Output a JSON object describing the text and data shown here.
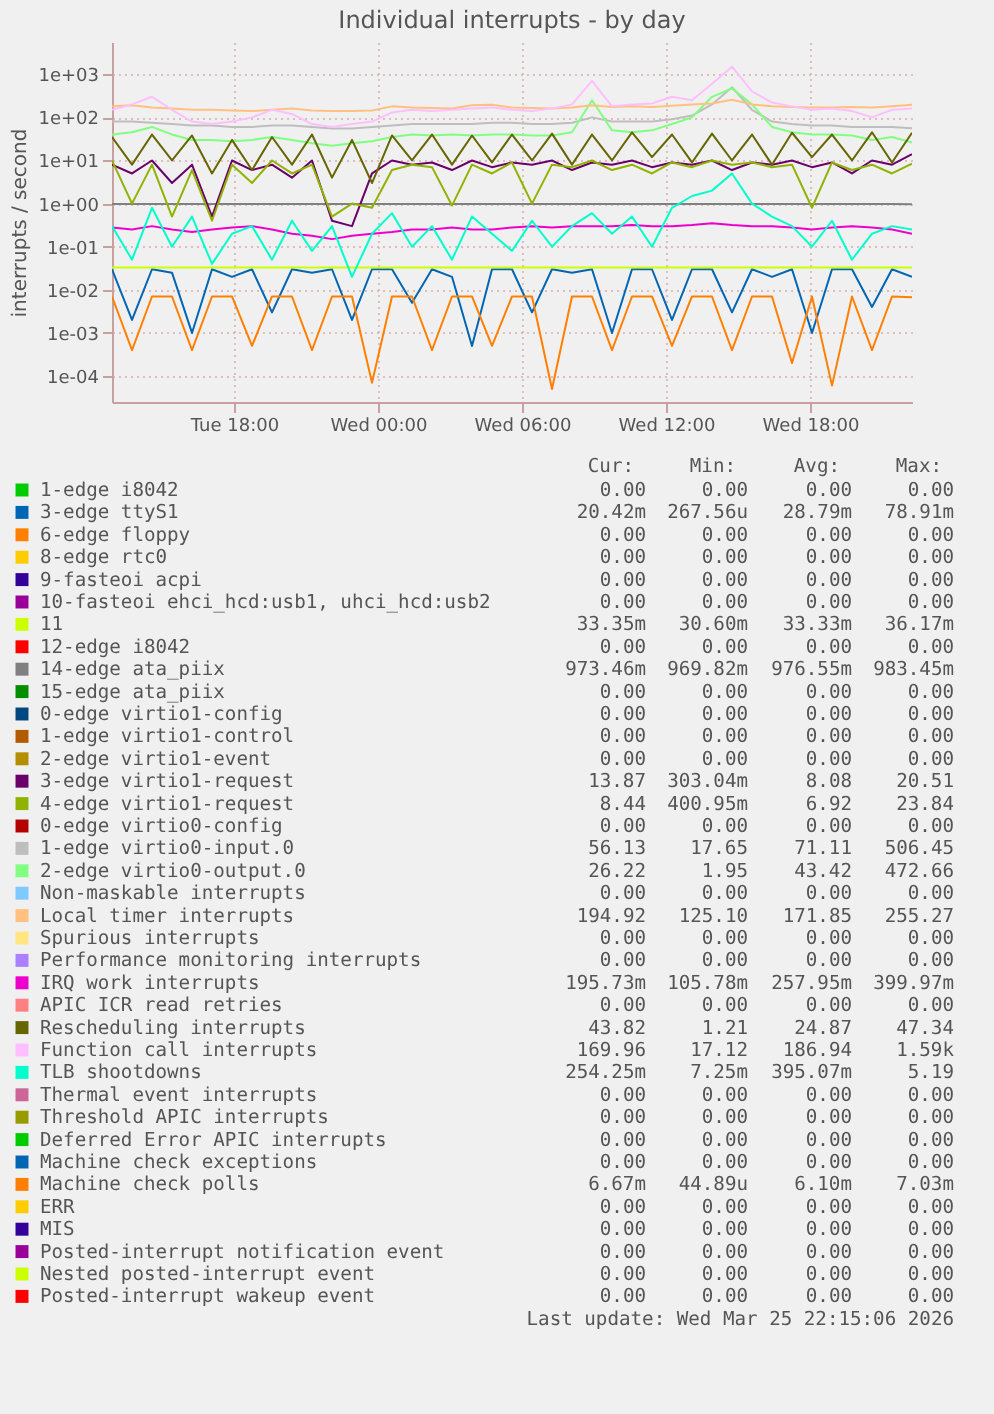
{
  "chart_data": {
    "type": "line",
    "title": "Individual interrupts - by day",
    "ylabel": "interrupts / second",
    "log": true,
    "grid": true,
    "legend": "bottom",
    "xlim": [
      "2026-03-24T12:55",
      "2026-03-25T22:15"
    ],
    "xticks": [
      {
        "value": "2026-03-24T18:00",
        "label": "Tue 18:00"
      },
      {
        "value": "2026-03-25T00:00",
        "label": "Wed 00:00"
      },
      {
        "value": "2026-03-25T06:00",
        "label": "Wed 06:00"
      },
      {
        "value": "2026-03-25T12:00",
        "label": "Wed 12:00"
      },
      {
        "value": "2026-03-25T18:00",
        "label": "Wed 18:00"
      }
    ],
    "ylim": [
      2.5e-05,
      5600
    ],
    "yticks": [
      {
        "value": 0.0001,
        "label": "1e-04"
      },
      {
        "value": 0.001,
        "label": "1e-03"
      },
      {
        "value": 0.01,
        "label": "1e-02"
      },
      {
        "value": 0.1,
        "label": "1e-01"
      },
      {
        "value": 1,
        "label": "1e+00"
      },
      {
        "value": 10,
        "label": "1e+01"
      },
      {
        "value": 100,
        "label": "1e+02"
      },
      {
        "value": 1000,
        "label": "1e+03"
      }
    ],
    "x": [
      "2026-03-24T12:55",
      "2026-03-24T13:45",
      "2026-03-24T14:35",
      "2026-03-24T15:25",
      "2026-03-24T16:15",
      "2026-03-24T17:05",
      "2026-03-24T17:55",
      "2026-03-24T18:45",
      "2026-03-24T19:35",
      "2026-03-24T20:25",
      "2026-03-24T21:15",
      "2026-03-24T22:05",
      "2026-03-24T22:55",
      "2026-03-24T23:45",
      "2026-03-25T00:35",
      "2026-03-25T01:25",
      "2026-03-25T02:15",
      "2026-03-25T03:05",
      "2026-03-25T03:55",
      "2026-03-25T04:45",
      "2026-03-25T05:35",
      "2026-03-25T06:25",
      "2026-03-25T07:15",
      "2026-03-25T08:05",
      "2026-03-25T08:55",
      "2026-03-25T09:45",
      "2026-03-25T10:35",
      "2026-03-25T11:25",
      "2026-03-25T12:15",
      "2026-03-25T13:05",
      "2026-03-25T13:55",
      "2026-03-25T14:45",
      "2026-03-25T15:35",
      "2026-03-25T16:25",
      "2026-03-25T17:15",
      "2026-03-25T18:05",
      "2026-03-25T18:55",
      "2026-03-25T19:45",
      "2026-03-25T20:35",
      "2026-03-25T21:25",
      "2026-03-25T22:15"
    ],
    "series": [
      {
        "name": "1-edge i8042",
        "color": "#00cc00",
        "values": [
          null,
          null,
          null,
          null,
          null,
          null,
          null,
          null,
          null,
          null,
          null,
          null,
          null,
          null,
          null,
          null,
          null,
          null,
          null,
          null,
          null,
          null,
          null,
          null,
          null,
          null,
          null,
          null,
          null,
          null,
          null,
          null,
          null,
          null,
          null,
          null,
          null,
          null,
          null,
          null,
          null
        ]
      },
      {
        "name": "3-edge ttyS1",
        "color": "#0066b3",
        "values": [
          0.03,
          0.002,
          0.03,
          0.025,
          0.001,
          0.03,
          0.02,
          0.03,
          0.003,
          0.03,
          0.025,
          0.03,
          0.002,
          0.03,
          0.03,
          0.005,
          0.03,
          0.02,
          0.0005,
          0.03,
          0.03,
          0.003,
          0.03,
          0.025,
          0.03,
          0.001,
          0.03,
          0.03,
          0.002,
          0.03,
          0.03,
          0.003,
          0.03,
          0.02,
          0.03,
          0.001,
          0.03,
          0.03,
          0.004,
          0.03,
          0.02
        ]
      },
      {
        "name": "6-edge floppy",
        "color": "#ff8000",
        "values": [
          null,
          null,
          null,
          null,
          null,
          null,
          null,
          null,
          null,
          null,
          null,
          null,
          null,
          null,
          null,
          null,
          null,
          null,
          null,
          null,
          null,
          null,
          null,
          null,
          null,
          null,
          null,
          null,
          null,
          null,
          null,
          null,
          null,
          null,
          null,
          null,
          null,
          null,
          null,
          null,
          null
        ]
      },
      {
        "name": "8-edge rtc0",
        "color": "#ffcc00",
        "values": [
          null,
          null,
          null,
          null,
          null,
          null,
          null,
          null,
          null,
          null,
          null,
          null,
          null,
          null,
          null,
          null,
          null,
          null,
          null,
          null,
          null,
          null,
          null,
          null,
          null,
          null,
          null,
          null,
          null,
          null,
          null,
          null,
          null,
          null,
          null,
          null,
          null,
          null,
          null,
          null,
          null
        ]
      },
      {
        "name": "9-fasteoi acpi",
        "color": "#330099",
        "values": [
          null,
          null,
          null,
          null,
          null,
          null,
          null,
          null,
          null,
          null,
          null,
          null,
          null,
          null,
          null,
          null,
          null,
          null,
          null,
          null,
          null,
          null,
          null,
          null,
          null,
          null,
          null,
          null,
          null,
          null,
          null,
          null,
          null,
          null,
          null,
          null,
          null,
          null,
          null,
          null,
          null
        ]
      },
      {
        "name": "10-fasteoi ehci_hcd:usb1, uhci_hcd:usb2",
        "color": "#990099",
        "values": [
          null,
          null,
          null,
          null,
          null,
          null,
          null,
          null,
          null,
          null,
          null,
          null,
          null,
          null,
          null,
          null,
          null,
          null,
          null,
          null,
          null,
          null,
          null,
          null,
          null,
          null,
          null,
          null,
          null,
          null,
          null,
          null,
          null,
          null,
          null,
          null,
          null,
          null,
          null,
          null,
          null
        ]
      },
      {
        "name": "11",
        "color": "#ccff00",
        "values": [
          0.033,
          0.033,
          0.033,
          0.033,
          0.033,
          0.033,
          0.033,
          0.033,
          0.033,
          0.033,
          0.033,
          0.033,
          0.033,
          0.033,
          0.033,
          0.033,
          0.033,
          0.033,
          0.033,
          0.033,
          0.033,
          0.033,
          0.033,
          0.033,
          0.033,
          0.033,
          0.033,
          0.033,
          0.033,
          0.033,
          0.033,
          0.033,
          0.033,
          0.033,
          0.033,
          0.033,
          0.033,
          0.033,
          0.033,
          0.033,
          0.033
        ]
      },
      {
        "name": "12-edge i8042",
        "color": "#ff0000",
        "values": [
          null,
          null,
          null,
          null,
          null,
          null,
          null,
          null,
          null,
          null,
          null,
          null,
          null,
          null,
          null,
          null,
          null,
          null,
          null,
          null,
          null,
          null,
          null,
          null,
          null,
          null,
          null,
          null,
          null,
          null,
          null,
          null,
          null,
          null,
          null,
          null,
          null,
          null,
          null,
          null,
          null
        ]
      },
      {
        "name": "14-edge ata_piix",
        "color": "#808080",
        "values": [
          0.98,
          0.98,
          0.98,
          0.98,
          0.98,
          0.98,
          0.98,
          0.98,
          0.98,
          0.98,
          0.98,
          0.98,
          0.98,
          0.98,
          0.98,
          0.98,
          0.98,
          0.98,
          0.98,
          0.98,
          0.98,
          0.98,
          0.98,
          0.98,
          0.98,
          0.98,
          0.98,
          0.98,
          0.98,
          0.98,
          0.98,
          0.98,
          0.98,
          0.98,
          0.98,
          0.98,
          0.98,
          0.98,
          0.98,
          0.98,
          0.97
        ]
      },
      {
        "name": "15-edge ata_piix",
        "color": "#008f00",
        "values": [
          null,
          null,
          null,
          null,
          null,
          null,
          null,
          null,
          null,
          null,
          null,
          null,
          null,
          null,
          null,
          null,
          null,
          null,
          null,
          null,
          null,
          null,
          null,
          null,
          null,
          null,
          null,
          null,
          null,
          null,
          null,
          null,
          null,
          null,
          null,
          null,
          null,
          null,
          null,
          null,
          null
        ]
      },
      {
        "name": "0-edge virtio1-config",
        "color": "#00487d",
        "values": [
          null,
          null,
          null,
          null,
          null,
          null,
          null,
          null,
          null,
          null,
          null,
          null,
          null,
          null,
          null,
          null,
          null,
          null,
          null,
          null,
          null,
          null,
          null,
          null,
          null,
          null,
          null,
          null,
          null,
          null,
          null,
          null,
          null,
          null,
          null,
          null,
          null,
          null,
          null,
          null,
          null
        ]
      },
      {
        "name": "1-edge virtio1-control",
        "color": "#b35a00",
        "values": [
          null,
          null,
          null,
          null,
          null,
          null,
          null,
          null,
          null,
          null,
          null,
          null,
          null,
          null,
          null,
          null,
          null,
          null,
          null,
          null,
          null,
          null,
          null,
          null,
          null,
          null,
          null,
          null,
          null,
          null,
          null,
          null,
          null,
          null,
          null,
          null,
          null,
          null,
          null,
          null,
          null
        ]
      },
      {
        "name": "2-edge virtio1-event",
        "color": "#b38f00",
        "values": [
          null,
          null,
          null,
          null,
          null,
          null,
          null,
          null,
          null,
          null,
          null,
          null,
          null,
          null,
          null,
          null,
          null,
          null,
          null,
          null,
          null,
          null,
          null,
          null,
          null,
          null,
          null,
          null,
          null,
          null,
          null,
          null,
          null,
          null,
          null,
          null,
          null,
          null,
          null,
          null,
          null
        ]
      },
      {
        "name": "3-edge virtio1-request",
        "color": "#6b006b",
        "values": [
          8,
          5,
          10,
          3,
          8,
          0.5,
          10,
          6,
          8,
          4,
          10,
          0.4,
          0.3,
          5,
          10,
          8,
          9,
          6,
          10,
          7,
          9,
          8,
          10,
          6,
          9,
          8,
          10,
          7,
          9,
          8,
          10,
          6,
          9,
          8,
          10,
          7,
          9,
          5,
          10,
          8,
          14
        ]
      },
      {
        "name": "4-edge virtio1-request",
        "color": "#8fb300",
        "values": [
          10,
          1,
          8,
          0.5,
          6,
          0.4,
          8,
          3,
          10,
          5,
          8,
          0.5,
          1,
          0.8,
          6,
          8,
          7,
          0.9,
          8,
          5,
          9,
          1,
          8,
          7,
          10,
          6,
          8,
          5,
          9,
          7,
          10,
          8,
          9,
          7,
          8,
          0.8,
          9,
          6,
          8,
          5,
          8.4
        ]
      },
      {
        "name": "0-edge virtio0-config",
        "color": "#b30000",
        "values": [
          null,
          null,
          null,
          null,
          null,
          null,
          null,
          null,
          null,
          null,
          null,
          null,
          null,
          null,
          null,
          null,
          null,
          null,
          null,
          null,
          null,
          null,
          null,
          null,
          null,
          null,
          null,
          null,
          null,
          null,
          null,
          null,
          null,
          null,
          null,
          null,
          null,
          null,
          null,
          null,
          null
        ]
      },
      {
        "name": "1-edge virtio0-input.0",
        "color": "#bebebe",
        "values": [
          80,
          80,
          75,
          70,
          65,
          65,
          60,
          60,
          65,
          65,
          60,
          55,
          55,
          60,
          65,
          70,
          70,
          70,
          70,
          75,
          75,
          70,
          70,
          75,
          100,
          80,
          80,
          80,
          90,
          110,
          200,
          500,
          150,
          80,
          70,
          65,
          65,
          60,
          60,
          60,
          56
        ]
      },
      {
        "name": "2-edge virtio0-output.0",
        "color": "#80ff80",
        "values": [
          40,
          45,
          60,
          40,
          30,
          30,
          28,
          30,
          35,
          30,
          25,
          22,
          25,
          28,
          35,
          40,
          38,
          40,
          38,
          40,
          40,
          38,
          38,
          45,
          250,
          50,
          45,
          50,
          70,
          100,
          300,
          470,
          200,
          60,
          45,
          40,
          40,
          38,
          30,
          35,
          26
        ]
      },
      {
        "name": "Non-maskable interrupts",
        "color": "#80c9ff",
        "values": [
          null,
          null,
          null,
          null,
          null,
          null,
          null,
          null,
          null,
          null,
          null,
          null,
          null,
          null,
          null,
          null,
          null,
          null,
          null,
          null,
          null,
          null,
          null,
          null,
          null,
          null,
          null,
          null,
          null,
          null,
          null,
          null,
          null,
          null,
          null,
          null,
          null,
          null,
          null,
          null,
          null
        ]
      },
      {
        "name": "Local timer interrupts",
        "color": "#ffc080",
        "values": [
          180,
          190,
          170,
          160,
          150,
          150,
          145,
          140,
          150,
          160,
          145,
          140,
          140,
          145,
          180,
          170,
          165,
          160,
          190,
          195,
          170,
          165,
          160,
          170,
          190,
          175,
          180,
          175,
          185,
          200,
          210,
          255,
          200,
          180,
          175,
          170,
          170,
          175,
          170,
          180,
          195
        ]
      },
      {
        "name": "Spurious interrupts",
        "color": "#ffe680",
        "values": [
          null,
          null,
          null,
          null,
          null,
          null,
          null,
          null,
          null,
          null,
          null,
          null,
          null,
          null,
          null,
          null,
          null,
          null,
          null,
          null,
          null,
          null,
          null,
          null,
          null,
          null,
          null,
          null,
          null,
          null,
          null,
          null,
          null,
          null,
          null,
          null,
          null,
          null,
          null,
          null,
          null
        ]
      },
      {
        "name": "Performance monitoring interrupts",
        "color": "#aa80ff",
        "values": [
          null,
          null,
          null,
          null,
          null,
          null,
          null,
          null,
          null,
          null,
          null,
          null,
          null,
          null,
          null,
          null,
          null,
          null,
          null,
          null,
          null,
          null,
          null,
          null,
          null,
          null,
          null,
          null,
          null,
          null,
          null,
          null,
          null,
          null,
          null,
          null,
          null,
          null,
          null,
          null,
          null
        ]
      },
      {
        "name": "IRQ work interrupts",
        "color": "#ee00cc",
        "values": [
          0.28,
          0.25,
          0.3,
          0.25,
          0.22,
          0.25,
          0.28,
          0.3,
          0.25,
          0.2,
          0.18,
          0.15,
          0.18,
          0.2,
          0.22,
          0.25,
          0.25,
          0.28,
          0.25,
          0.25,
          0.28,
          0.3,
          0.28,
          0.3,
          0.3,
          0.3,
          0.32,
          0.3,
          0.3,
          0.32,
          0.35,
          0.32,
          0.3,
          0.3,
          0.28,
          0.25,
          0.28,
          0.3,
          0.28,
          0.25,
          0.2
        ]
      },
      {
        "name": "APIC ICR read retries",
        "color": "#ff8080",
        "values": [
          null,
          null,
          null,
          null,
          null,
          null,
          null,
          null,
          null,
          null,
          null,
          null,
          null,
          null,
          null,
          null,
          null,
          null,
          null,
          null,
          null,
          null,
          null,
          null,
          null,
          null,
          null,
          null,
          null,
          null,
          null,
          null,
          null,
          null,
          null,
          null,
          null,
          null,
          null,
          null,
          null
        ]
      },
      {
        "name": "Rescheduling interrupts",
        "color": "#666600",
        "values": [
          35,
          8,
          40,
          10,
          38,
          5,
          30,
          6,
          35,
          8,
          40,
          4,
          30,
          3,
          38,
          10,
          40,
          8,
          38,
          9,
          40,
          10,
          42,
          8,
          40,
          10,
          45,
          12,
          40,
          9,
          42,
          10,
          40,
          8,
          44,
          12,
          40,
          10,
          45,
          9,
          44
        ]
      },
      {
        "name": "Function call interrupts",
        "color": "#ffbfff",
        "values": [
          150,
          200,
          300,
          150,
          80,
          70,
          80,
          100,
          150,
          120,
          70,
          60,
          70,
          80,
          130,
          150,
          140,
          150,
          160,
          170,
          150,
          140,
          160,
          200,
          700,
          180,
          200,
          210,
          300,
          250,
          600,
          1500,
          400,
          220,
          180,
          150,
          160,
          140,
          100,
          150,
          160
        ]
      },
      {
        "name": "TLB shootdowns",
        "color": "#00ffcc",
        "values": [
          0.3,
          0.05,
          0.8,
          0.1,
          0.5,
          0.04,
          0.2,
          0.3,
          0.05,
          0.4,
          0.08,
          0.3,
          0.02,
          0.2,
          0.6,
          0.1,
          0.3,
          0.05,
          0.5,
          0.2,
          0.08,
          0.4,
          0.1,
          0.3,
          0.6,
          0.2,
          0.5,
          0.1,
          0.8,
          1.5,
          2,
          5,
          1,
          0.5,
          0.3,
          0.1,
          0.4,
          0.05,
          0.2,
          0.3,
          0.25
        ]
      },
      {
        "name": "Thermal event interrupts",
        "color": "#cc6699",
        "values": [
          null,
          null,
          null,
          null,
          null,
          null,
          null,
          null,
          null,
          null,
          null,
          null,
          null,
          null,
          null,
          null,
          null,
          null,
          null,
          null,
          null,
          null,
          null,
          null,
          null,
          null,
          null,
          null,
          null,
          null,
          null,
          null,
          null,
          null,
          null,
          null,
          null,
          null,
          null,
          null,
          null
        ]
      },
      {
        "name": "Threshold APIC interrupts",
        "color": "#999900",
        "values": [
          null,
          null,
          null,
          null,
          null,
          null,
          null,
          null,
          null,
          null,
          null,
          null,
          null,
          null,
          null,
          null,
          null,
          null,
          null,
          null,
          null,
          null,
          null,
          null,
          null,
          null,
          null,
          null,
          null,
          null,
          null,
          null,
          null,
          null,
          null,
          null,
          null,
          null,
          null,
          null,
          null
        ]
      },
      {
        "name": "Deferred Error APIC interrupts",
        "color": "#00cc00",
        "values": [
          null,
          null,
          null,
          null,
          null,
          null,
          null,
          null,
          null,
          null,
          null,
          null,
          null,
          null,
          null,
          null,
          null,
          null,
          null,
          null,
          null,
          null,
          null,
          null,
          null,
          null,
          null,
          null,
          null,
          null,
          null,
          null,
          null,
          null,
          null,
          null,
          null,
          null,
          null,
          null,
          null
        ]
      },
      {
        "name": "Machine check exceptions",
        "color": "#0066b3",
        "values": [
          null,
          null,
          null,
          null,
          null,
          null,
          null,
          null,
          null,
          null,
          null,
          null,
          null,
          null,
          null,
          null,
          null,
          null,
          null,
          null,
          null,
          null,
          null,
          null,
          null,
          null,
          null,
          null,
          null,
          null,
          null,
          null,
          null,
          null,
          null,
          null,
          null,
          null,
          null,
          null,
          null
        ]
      },
      {
        "name": "Machine check polls",
        "color": "#ff8000",
        "values": [
          0.007,
          0.0004,
          0.007,
          0.007,
          0.0004,
          0.007,
          0.007,
          0.0005,
          0.007,
          0.007,
          0.0004,
          0.007,
          0.007,
          7e-05,
          0.007,
          0.007,
          0.0004,
          0.007,
          0.007,
          0.0005,
          0.007,
          0.007,
          5e-05,
          0.007,
          0.007,
          0.0004,
          0.007,
          0.007,
          0.0005,
          0.007,
          0.007,
          0.0004,
          0.007,
          0.007,
          0.0002,
          0.007,
          6e-05,
          0.007,
          0.0004,
          0.007,
          0.0067
        ]
      },
      {
        "name": "ERR",
        "color": "#ffcc00",
        "values": [
          null,
          null,
          null,
          null,
          null,
          null,
          null,
          null,
          null,
          null,
          null,
          null,
          null,
          null,
          null,
          null,
          null,
          null,
          null,
          null,
          null,
          null,
          null,
          null,
          null,
          null,
          null,
          null,
          null,
          null,
          null,
          null,
          null,
          null,
          null,
          null,
          null,
          null,
          null,
          null,
          null
        ]
      },
      {
        "name": "MIS",
        "color": "#330099",
        "values": [
          null,
          null,
          null,
          null,
          null,
          null,
          null,
          null,
          null,
          null,
          null,
          null,
          null,
          null,
          null,
          null,
          null,
          null,
          null,
          null,
          null,
          null,
          null,
          null,
          null,
          null,
          null,
          null,
          null,
          null,
          null,
          null,
          null,
          null,
          null,
          null,
          null,
          null,
          null,
          null,
          null
        ]
      },
      {
        "name": "Posted-interrupt notification event",
        "color": "#990099",
        "values": [
          null,
          null,
          null,
          null,
          null,
          null,
          null,
          null,
          null,
          null,
          null,
          null,
          null,
          null,
          null,
          null,
          null,
          null,
          null,
          null,
          null,
          null,
          null,
          null,
          null,
          null,
          null,
          null,
          null,
          null,
          null,
          null,
          null,
          null,
          null,
          null,
          null,
          null,
          null,
          null,
          null
        ]
      },
      {
        "name": "Nested posted-interrupt event",
        "color": "#ccff00",
        "values": [
          null,
          null,
          null,
          null,
          null,
          null,
          null,
          null,
          null,
          null,
          null,
          null,
          null,
          null,
          null,
          null,
          null,
          null,
          null,
          null,
          null,
          null,
          null,
          null,
          null,
          null,
          null,
          null,
          null,
          null,
          null,
          null,
          null,
          null,
          null,
          null,
          null,
          null,
          null,
          null,
          null
        ]
      },
      {
        "name": "Posted-interrupt wakeup event",
        "color": "#ff0000",
        "values": [
          null,
          null,
          null,
          null,
          null,
          null,
          null,
          null,
          null,
          null,
          null,
          null,
          null,
          null,
          null,
          null,
          null,
          null,
          null,
          null,
          null,
          null,
          null,
          null,
          null,
          null,
          null,
          null,
          null,
          null,
          null,
          null,
          null,
          null,
          null,
          null,
          null,
          null,
          null,
          null,
          null
        ]
      }
    ],
    "annotations": [
      "Cur:",
      "Min:",
      "Avg:",
      "Max:",
      "0.00",
      "0.00",
      "0.00",
      "0.00",
      "20.42m",
      "267.56u",
      "28.79m",
      "78.91m",
      "0.00",
      "0.00",
      "0.00",
      "0.00",
      "0.00",
      "0.00",
      "0.00",
      "0.00",
      "0.00",
      "0.00",
      "0.00",
      "0.00",
      "0.00",
      "0.00",
      "0.00",
      "0.00",
      "33.35m",
      "30.60m",
      "33.33m",
      "36.17m",
      "0.00",
      "0.00",
      "0.00",
      "0.00",
      "973.46m",
      "969.82m",
      "976.55m",
      "983.45m",
      "0.00",
      "0.00",
      "0.00",
      "0.00",
      "0.00",
      "0.00",
      "0.00",
      "0.00",
      "0.00",
      "0.00",
      "0.00",
      "0.00",
      "0.00",
      "0.00",
      "0.00",
      "0.00",
      "13.87",
      "303.04m",
      "8.08",
      "20.51",
      "8.44",
      "400.95m",
      "6.92",
      "23.84",
      "0.00",
      "0.00",
      "0.00",
      "0.00",
      "56.13",
      "17.65",
      "71.11",
      "506.45",
      "26.22",
      "1.95",
      "43.42",
      "472.66",
      "0.00",
      "0.00",
      "0.00",
      "0.00",
      "194.92",
      "125.10",
      "171.85",
      "255.27",
      "0.00",
      "0.00",
      "0.00",
      "0.00",
      "0.00",
      "0.00",
      "0.00",
      "0.00",
      "195.73m",
      "105.78m",
      "257.95m",
      "399.97m",
      "0.00",
      "0.00",
      "0.00",
      "0.00",
      "43.82",
      "1.21",
      "24.87",
      "47.34",
      "169.96",
      "17.12",
      "186.94",
      "1.59k",
      "254.25m",
      "7.25m",
      "395.07m",
      "5.19",
      "0.00",
      "0.00",
      "0.00",
      "0.00",
      "0.00",
      "0.00",
      "0.00",
      "0.00",
      "0.00",
      "0.00",
      "0.00",
      "0.00",
      "0.00",
      "0.00",
      "0.00",
      "0.00",
      "6.67m",
      "44.89u",
      "6.10m",
      "7.03m",
      "0.00",
      "0.00",
      "0.00",
      "0.00",
      "0.00",
      "0.00",
      "0.00",
      "0.00",
      "0.00",
      "0.00",
      "0.00",
      "0.00",
      "0.00",
      "0.00",
      "0.00",
      "0.00",
      "0.00",
      "0.00",
      "0.00",
      "0.00",
      "Last update: Wed Mar 25 22:15:06 2026"
    ]
  }
}
